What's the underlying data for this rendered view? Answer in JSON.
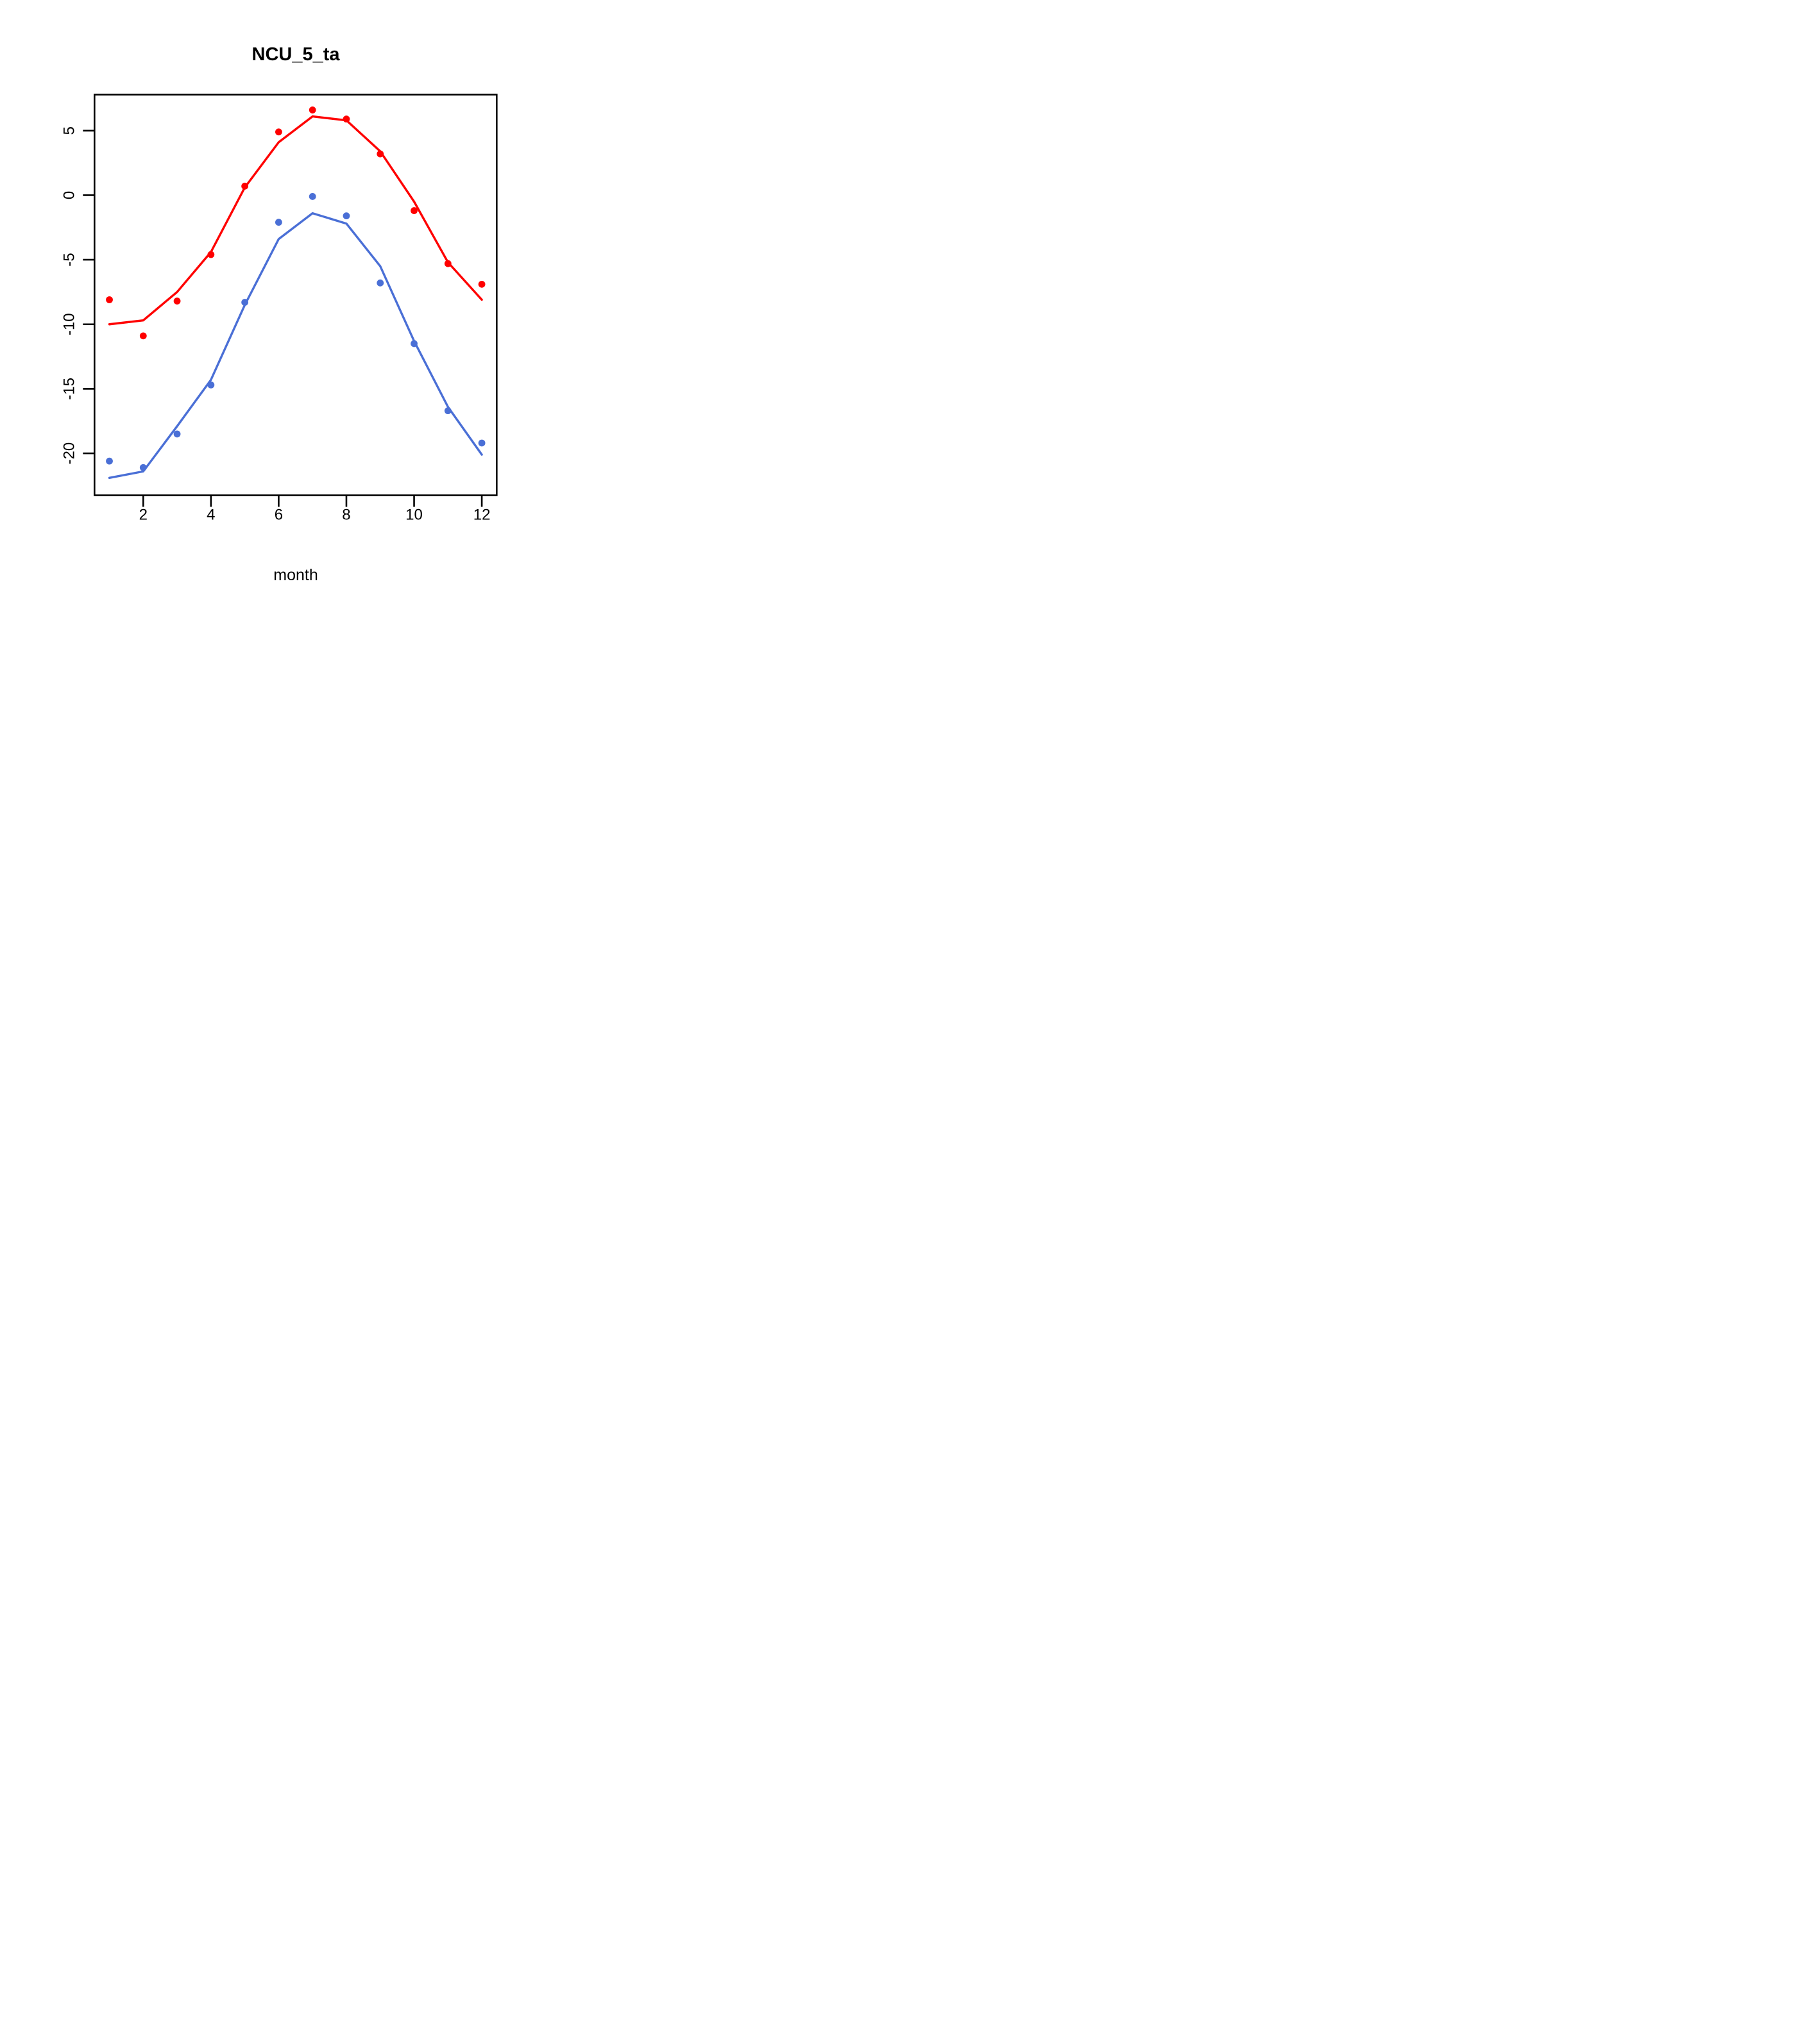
{
  "chart_data": {
    "type": "line",
    "title": "NCU_5_ta",
    "xlabel": "month",
    "ylabel": "",
    "background_color": "#FFFFFF",
    "axis_color": "#000000",
    "grid": false,
    "legend": "none",
    "x_ticks": [
      2,
      4,
      6,
      8,
      10,
      12
    ],
    "y_ticks": [
      5,
      0,
      -5,
      -10,
      -15,
      -20
    ],
    "y_tick_labels_rotated": true,
    "xlim": [
      0.56,
      12.44
    ],
    "ylim": [
      -23.25,
      7.79
    ],
    "x": [
      1,
      2,
      3,
      4,
      5,
      6,
      7,
      8,
      9,
      10,
      11,
      12
    ],
    "series": [
      {
        "name": "red-line",
        "draw": "line",
        "color": "#FF0000",
        "values": [
          -10.0,
          -9.7,
          -7.5,
          -4.4,
          0.6,
          4.1,
          6.1,
          5.8,
          3.4,
          -0.5,
          -5.2,
          -8.1
        ]
      },
      {
        "name": "red-points",
        "draw": "points",
        "color": "#FF0000",
        "values": [
          -8.1,
          -10.9,
          -8.2,
          -4.6,
          0.7,
          4.9,
          6.6,
          5.9,
          3.2,
          -1.2,
          -5.3,
          -6.9
        ]
      },
      {
        "name": "blue-line",
        "draw": "line",
        "color": "#4A6FD6",
        "values": [
          -21.9,
          -21.4,
          -17.9,
          -14.3,
          -8.5,
          -3.4,
          -1.4,
          -2.2,
          -5.5,
          -11.3,
          -16.4,
          -20.1
        ]
      },
      {
        "name": "blue-points",
        "draw": "points",
        "color": "#4A6FD6",
        "values": [
          -20.6,
          -21.1,
          -18.5,
          -14.7,
          -8.3,
          -2.1,
          -0.1,
          -1.6,
          -6.8,
          -11.5,
          -16.7,
          -19.2
        ]
      }
    ]
  }
}
